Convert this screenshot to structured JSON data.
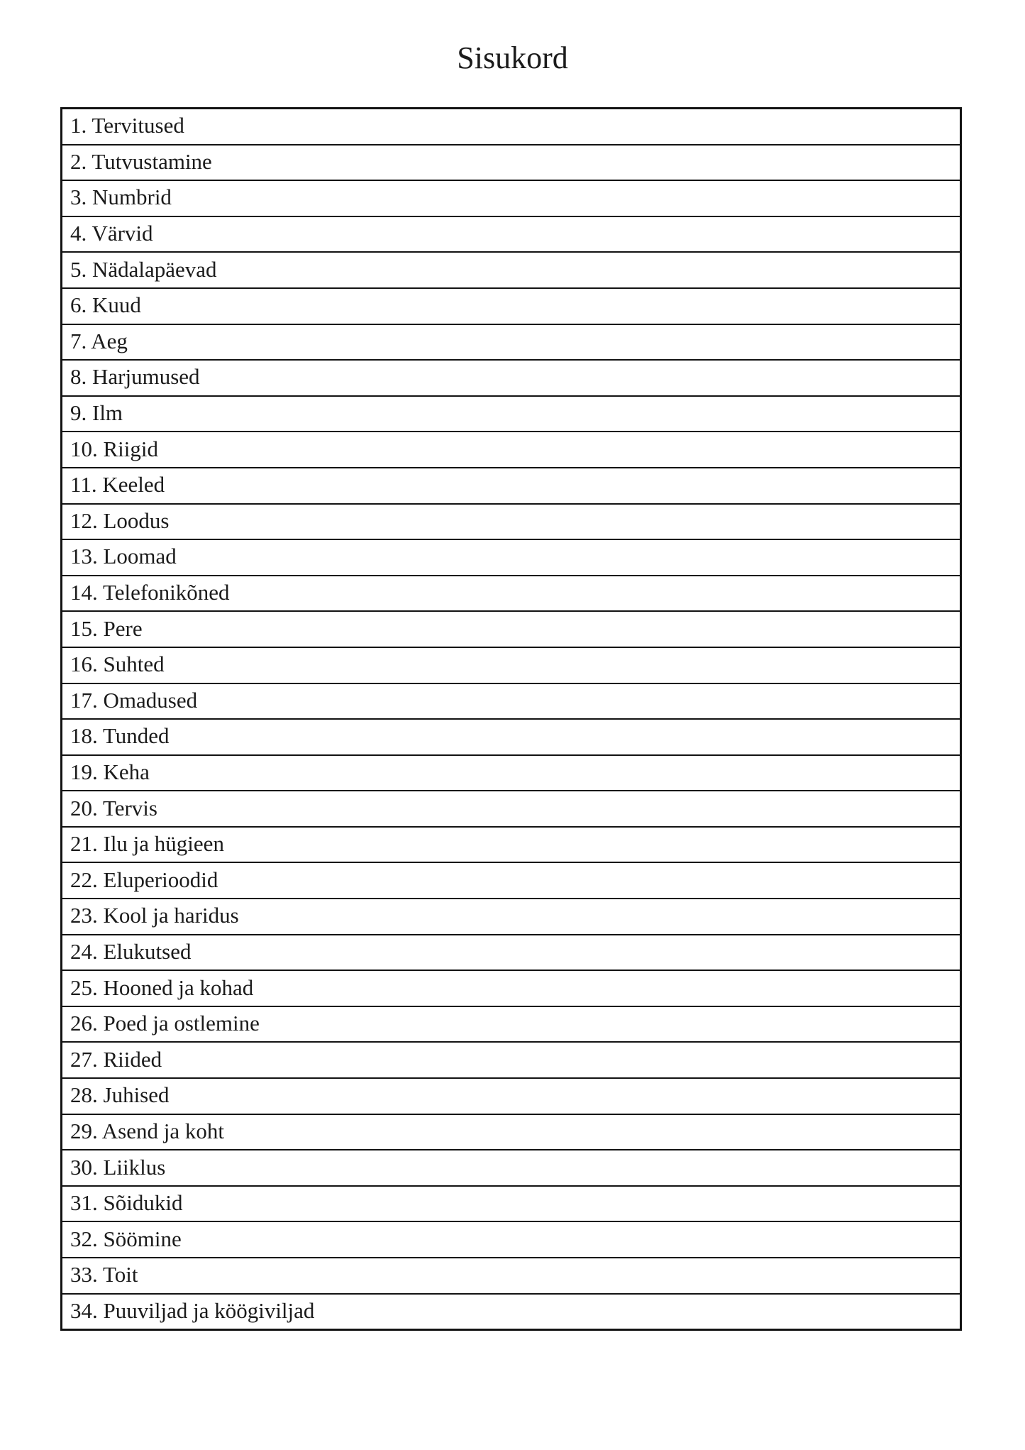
{
  "page": {
    "title": "Sisukord"
  },
  "toc": {
    "items": [
      {
        "text": "1. Tervitused"
      },
      {
        "text": "2. Tutvustamine"
      },
      {
        "text": "3. Numbrid"
      },
      {
        "text": "4. Värvid"
      },
      {
        "text": "5. Nädalapäevad"
      },
      {
        "text": "6. Kuud"
      },
      {
        "text": "7. Aeg"
      },
      {
        "text": "8. Harjumused"
      },
      {
        "text": "9. Ilm"
      },
      {
        "text": "10. Riigid"
      },
      {
        "text": "11. Keeled"
      },
      {
        "text": "12. Loodus"
      },
      {
        "text": "13. Loomad"
      },
      {
        "text": "14. Telefonikõned"
      },
      {
        "text": "15. Pere"
      },
      {
        "text": "16. Suhted"
      },
      {
        "text": "17. Omadused"
      },
      {
        "text": "18. Tunded"
      },
      {
        "text": "19. Keha"
      },
      {
        "text": "20. Tervis"
      },
      {
        "text": "21. Ilu ja hügieen"
      },
      {
        "text": "22. Eluperioodid"
      },
      {
        "text": "23. Kool ja haridus"
      },
      {
        "text": "24. Elukutsed"
      },
      {
        "text": "25. Hooned ja kohad"
      },
      {
        "text": "26. Poed ja ostlemine"
      },
      {
        "text": "27. Riided"
      },
      {
        "text": "28. Juhised"
      },
      {
        "text": "29. Asend ja koht"
      },
      {
        "text": "30. Liiklus"
      },
      {
        "text": "31. Sõidukid"
      },
      {
        "text": "32. Söömine"
      },
      {
        "text": "33. Toit"
      },
      {
        "text": "34. Puuviljad ja köögiviljad"
      }
    ]
  }
}
